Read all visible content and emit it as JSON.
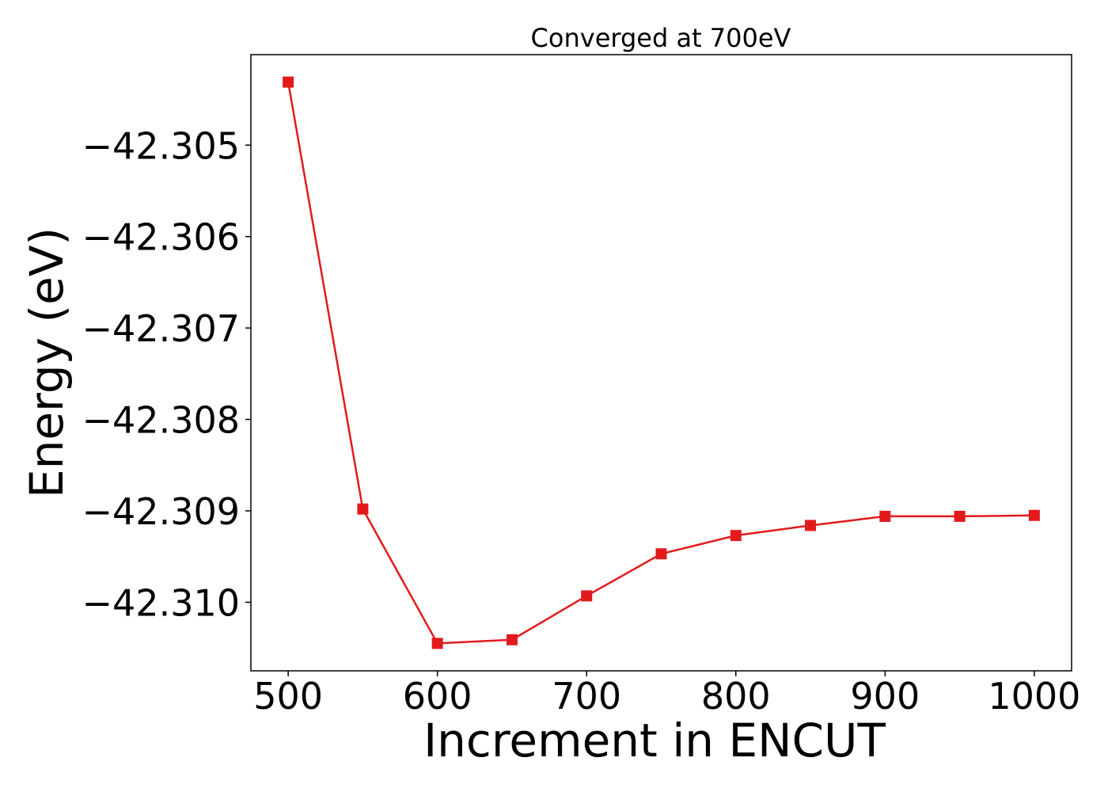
{
  "chart_data": {
    "type": "line",
    "title": "Converged at 700eV",
    "xlabel": "Increment in ENCUT",
    "ylabel": "Energy (eV)",
    "x": [
      500,
      550,
      600,
      650,
      700,
      750,
      800,
      850,
      900,
      950,
      1000
    ],
    "series": [
      {
        "values": [
          -42.30431,
          -42.30898,
          -42.31045,
          -42.31041,
          -42.30993,
          -42.30947,
          -42.30927,
          -42.30916,
          -42.30906,
          -42.30906,
          -42.30905
        ],
        "color": "#e31a1c",
        "marker": "square"
      }
    ],
    "xticks": [
      500,
      600,
      700,
      800,
      900,
      1000
    ],
    "xtick_labels": [
      "500",
      "600",
      "700",
      "800",
      "900",
      "1000"
    ],
    "yticks": [
      -42.305,
      -42.306,
      -42.307,
      -42.308,
      -42.309,
      -42.31
    ],
    "ytick_labels": [
      "−42.305",
      "−42.306",
      "−42.307",
      "−42.308",
      "−42.309",
      "−42.310"
    ],
    "xlim": [
      475,
      1025
    ],
    "ylim": [
      -42.31075,
      -42.30401
    ],
    "grid": false,
    "legend": "none"
  }
}
